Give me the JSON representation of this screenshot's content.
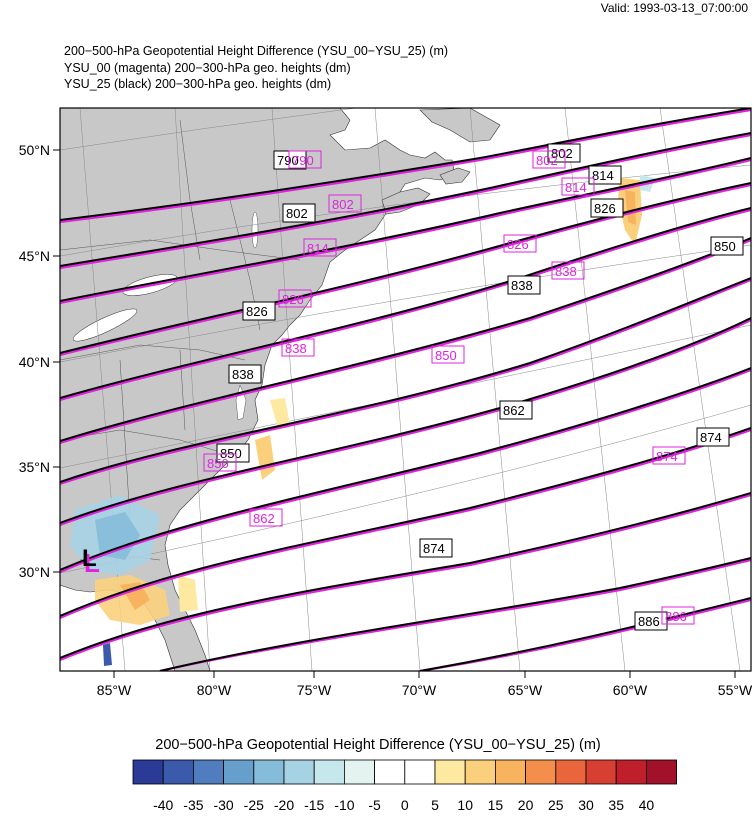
{
  "valid_time": "Valid: 1993-03-13_07:00:00",
  "titles": [
    "200−500-hPa Geopotential Height Difference (YSU_00−YSU_25)   (m)",
    "YSU_00 (magenta) 200−300-hPa geo. heights   (dm)",
    "YSU_25 (black) 200−300-hPa geo. heights   (dm)"
  ],
  "lat_labels": [
    "50°N",
    "45°N",
    "40°N",
    "35°N",
    "30°N"
  ],
  "lon_labels": [
    "85°W",
    "80°W",
    "75°W",
    "70°W",
    "65°W",
    "60°W",
    "55°W"
  ],
  "black_contour_labels": [
    "790",
    "802",
    "802",
    "814",
    "826",
    "826",
    "838",
    "838",
    "850",
    "850",
    "862",
    "874",
    "874",
    "886"
  ],
  "magenta_contour_labels": [
    "790",
    "802",
    "802",
    "814",
    "814",
    "826",
    "826",
    "838",
    "838",
    "850",
    "850",
    "862",
    "874",
    "886"
  ],
  "low_marker": "L",
  "colorbar": {
    "title": "200−500-hPa Geopotential Height Difference (YSU_00−YSU_25)  (m)",
    "tick_labels": [
      "-40",
      "-35",
      "-30",
      "-25",
      "-20",
      "-15",
      "-10",
      "-5",
      "0",
      "5",
      "10",
      "15",
      "20",
      "25",
      "30",
      "35",
      "40"
    ],
    "colors": [
      "#2b3a96",
      "#3c5aab",
      "#4f7dbd",
      "#679fcc",
      "#85bcd9",
      "#a6d3e4",
      "#c6e7ec",
      "#e3f4f0",
      "#ffffff",
      "#ffffff",
      "#fde9a0",
      "#fbd07c",
      "#f8b35f",
      "#f38f4b",
      "#e9663d",
      "#d83f33",
      "#be1f2b",
      "#a1112a"
    ]
  },
  "colors": {
    "land": "#c8c8c8",
    "ocean": "#ffffff",
    "black_contour": "#000000",
    "magenta_contour": "#e023e0"
  }
}
